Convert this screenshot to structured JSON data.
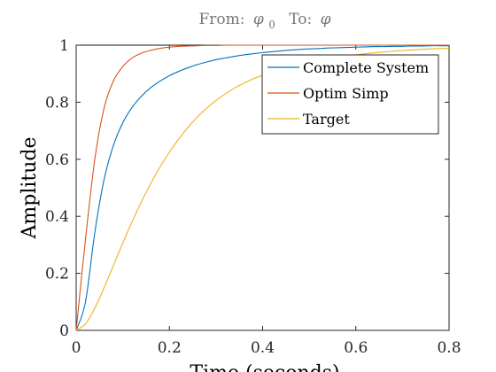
{
  "chart_data": {
    "type": "line",
    "title": "",
    "subtitle": {
      "from_label": "From:",
      "from_symbol": "φ",
      "from_subscript": "0",
      "to_label": "To:",
      "to_symbol": "φ"
    },
    "xlabel": "Time (seconds)",
    "ylabel": "Amplitude",
    "xlim": [
      0,
      0.8
    ],
    "ylim": [
      0,
      1
    ],
    "xticks": [
      0,
      0.2,
      0.4,
      0.6,
      0.8
    ],
    "xtick_labels": [
      "0",
      "0.2",
      "0.4",
      "0.6",
      "0.8"
    ],
    "yticks": [
      0,
      0.2,
      0.4,
      0.6,
      0.8,
      1
    ],
    "ytick_labels": [
      "0",
      "0.2",
      "0.4",
      "0.6",
      "0.8",
      "1"
    ],
    "grid": false,
    "legend_position": "top-right",
    "reference_line": {
      "y": 1,
      "style": "dotted",
      "color": "#000000"
    },
    "x": [
      0,
      0.02,
      0.04,
      0.06,
      0.08,
      0.1,
      0.12,
      0.14,
      0.16,
      0.18,
      0.2,
      0.22,
      0.24,
      0.26,
      0.28,
      0.3,
      0.32,
      0.34,
      0.36,
      0.38,
      0.4,
      0.42,
      0.44,
      0.46,
      0.48,
      0.5,
      0.52,
      0.54,
      0.56,
      0.58,
      0.6,
      0.62,
      0.64,
      0.66,
      0.68,
      0.7,
      0.72,
      0.74,
      0.76,
      0.78,
      0.8
    ],
    "series": [
      {
        "name": "Complete System",
        "color": "#0072BD",
        "values": [
          0,
          0.1,
          0.343,
          0.53,
          0.649,
          0.728,
          0.782,
          0.821,
          0.851,
          0.874,
          0.893,
          0.908,
          0.921,
          0.932,
          0.941,
          0.949,
          0.955,
          0.961,
          0.966,
          0.97,
          0.974,
          0.977,
          0.98,
          0.983,
          0.985,
          0.987,
          0.988,
          0.99,
          0.991,
          0.992,
          0.993,
          0.994,
          0.995,
          0.995,
          0.996,
          0.996,
          0.997,
          0.997,
          0.998,
          0.998,
          0.998
        ]
      },
      {
        "name": "Optim Simp",
        "color": "#D95319",
        "values": [
          0,
          0.32,
          0.6,
          0.78,
          0.875,
          0.925,
          0.955,
          0.972,
          0.982,
          0.989,
          0.993,
          0.996,
          0.997,
          0.998,
          0.999,
          0.999,
          1,
          1,
          1,
          1,
          1,
          1,
          1,
          1,
          1,
          1,
          1,
          1,
          1,
          1,
          1,
          1,
          1,
          1,
          1,
          1,
          1,
          1,
          1,
          1,
          1
        ]
      },
      {
        "name": "Target",
        "color": "#EDB120",
        "values": [
          0,
          0.023,
          0.078,
          0.15,
          0.228,
          0.306,
          0.381,
          0.451,
          0.515,
          0.573,
          0.625,
          0.671,
          0.712,
          0.748,
          0.779,
          0.806,
          0.829,
          0.85,
          0.867,
          0.882,
          0.895,
          0.907,
          0.917,
          0.926,
          0.934,
          0.941,
          0.948,
          0.953,
          0.958,
          0.962,
          0.966,
          0.97,
          0.973,
          0.976,
          0.979,
          0.981,
          0.983,
          0.985,
          0.987,
          0.988,
          0.989
        ]
      }
    ]
  }
}
